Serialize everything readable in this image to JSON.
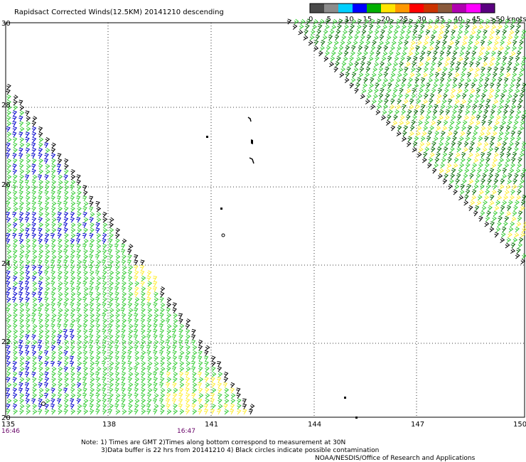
{
  "title": "Rapidsact Corrected Winds(12.5KM) 20141210 descending",
  "x_axis_labels": [
    "135",
    "138",
    "141",
    "144",
    "147",
    "150"
  ],
  "y_axis_labels": [
    "30",
    "28",
    "26",
    "24",
    "22",
    "20"
  ],
  "time_labels": [
    "16:46",
    "16:47"
  ],
  "legend": {
    "labels": [
      "0",
      "5",
      "10",
      "15",
      "20",
      "25",
      "30",
      "35",
      "40",
      "45",
      ">50 knots"
    ],
    "colors": [
      "#4a4a4a",
      "#8c8c8c",
      "#00cfff",
      "#0000ff",
      "#00b000",
      "#ffe400",
      "#ff9800",
      "#ff0000",
      "#cc3300",
      "#8a5a3c",
      "#b000b0",
      "#ff00ff",
      "#5a0080"
    ]
  },
  "colors": {
    "blue_barbs": "#0000cc",
    "green_barbs": "#33cc33",
    "dark_green_barbs": "#006600",
    "yellow_barbs": "#ffee33",
    "black_barbs": "#000000",
    "grid": "#000000",
    "time_text": "#660066"
  },
  "notes": {
    "line1": "Note: 1) Times are GMT 2)Times along bottom correspond to measurement at 30N",
    "line2": "3)Data buffer is 22 hrs from 20141210 4) Black circles indicate possible contamination",
    "credit": "NOAA/NESDIS/Office of Research and Applications"
  }
}
